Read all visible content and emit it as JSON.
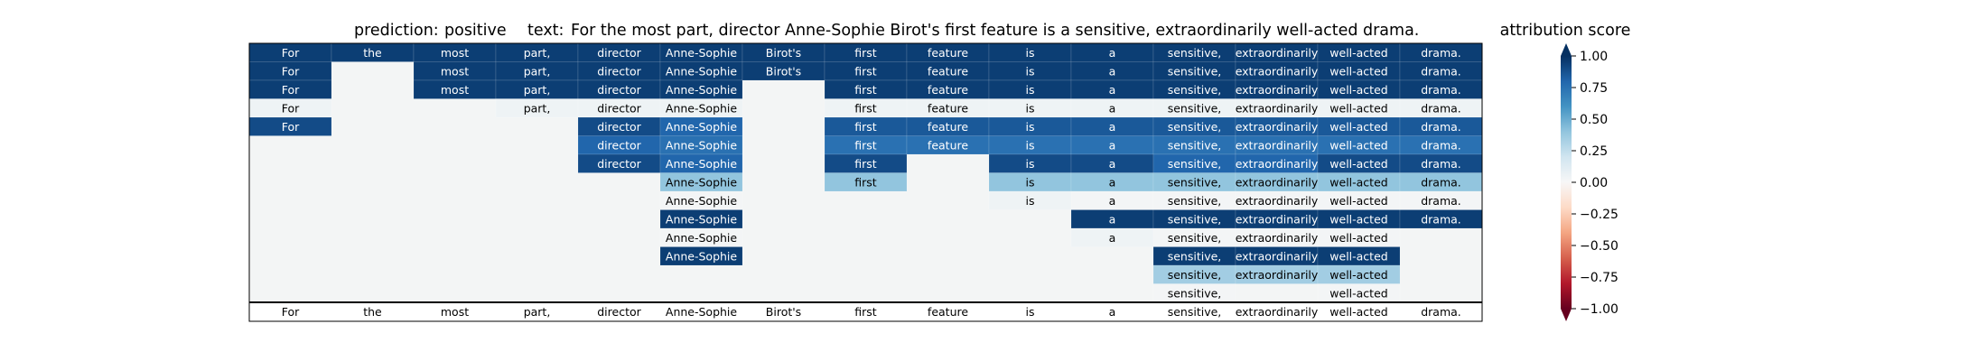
{
  "chart_data": {
    "type": "heatmap",
    "title": {
      "prediction_label": "prediction:",
      "prediction_value": "positive",
      "text_label": "text:",
      "text_value": "For the most part, director Anne-Sophie Birot's first feature is a sensitive, extraordinarily well-acted drama."
    },
    "tokens": [
      "For",
      "the",
      "most",
      "part,",
      "director",
      "Anne-Sophie",
      "Birot's",
      "first",
      "feature",
      "is",
      "a",
      "sensitive,",
      "extraordinarily",
      "well-acted",
      "drama."
    ],
    "rows": [
      [
        0.95,
        0.95,
        0.95,
        0.95,
        0.95,
        0.95,
        0.95,
        0.95,
        0.95,
        0.95,
        0.95,
        0.95,
        0.95,
        0.95,
        0.95
      ],
      [
        0.95,
        null,
        0.95,
        0.95,
        0.95,
        0.95,
        0.95,
        0.95,
        0.95,
        0.95,
        0.95,
        0.95,
        0.95,
        0.95,
        0.95
      ],
      [
        0.95,
        null,
        0.95,
        0.95,
        0.95,
        0.95,
        null,
        0.95,
        0.95,
        0.95,
        0.95,
        0.95,
        0.95,
        0.95,
        0.95
      ],
      [
        0.05,
        null,
        null,
        0.05,
        0.05,
        0.05,
        null,
        0.05,
        0.05,
        0.05,
        0.05,
        0.05,
        0.05,
        0.05,
        0.05
      ],
      [
        0.9,
        null,
        null,
        null,
        0.9,
        0.8,
        null,
        0.85,
        0.85,
        0.85,
        0.85,
        0.85,
        0.85,
        0.85,
        0.85
      ],
      [
        null,
        null,
        null,
        null,
        0.8,
        0.75,
        null,
        0.75,
        0.75,
        0.75,
        0.75,
        0.75,
        0.75,
        0.75,
        0.75
      ],
      [
        null,
        null,
        null,
        null,
        0.9,
        0.8,
        null,
        0.9,
        null,
        0.9,
        0.9,
        0.8,
        0.8,
        0.9,
        0.9
      ],
      [
        null,
        null,
        null,
        null,
        null,
        0.4,
        null,
        0.4,
        null,
        0.4,
        0.4,
        0.4,
        0.4,
        0.4,
        0.4
      ],
      [
        null,
        null,
        null,
        null,
        null,
        0.02,
        null,
        null,
        null,
        0.05,
        0.02,
        0.02,
        0.02,
        0.02,
        0.02
      ],
      [
        null,
        null,
        null,
        null,
        null,
        0.95,
        null,
        null,
        null,
        null,
        0.95,
        0.95,
        0.95,
        0.95,
        0.95
      ],
      [
        null,
        null,
        null,
        null,
        null,
        0.02,
        null,
        null,
        null,
        null,
        0.05,
        0.02,
        0.02,
        0.02,
        null
      ],
      [
        null,
        null,
        null,
        null,
        null,
        0.95,
        null,
        null,
        null,
        null,
        null,
        0.95,
        0.95,
        0.95,
        null
      ],
      [
        null,
        null,
        null,
        null,
        null,
        null,
        null,
        null,
        null,
        null,
        null,
        0.35,
        0.35,
        0.35,
        null
      ],
      [
        null,
        null,
        null,
        null,
        null,
        null,
        null,
        null,
        null,
        null,
        null,
        0.02,
        null,
        0.02,
        null
      ]
    ],
    "colorbar": {
      "label": "attribution score",
      "range": [
        -1.0,
        1.0
      ],
      "ticks": [
        "1.00",
        "0.75",
        "0.50",
        "0.25",
        "0.00",
        "−0.25",
        "−0.50",
        "−0.75",
        "−1.00"
      ],
      "colormap": "RdBu"
    },
    "colors": {
      "empty_cell": "#f3f5f5",
      "positive_end": "#053061",
      "negative_end": "#67001f",
      "neutral": "#f7f7f7"
    }
  }
}
